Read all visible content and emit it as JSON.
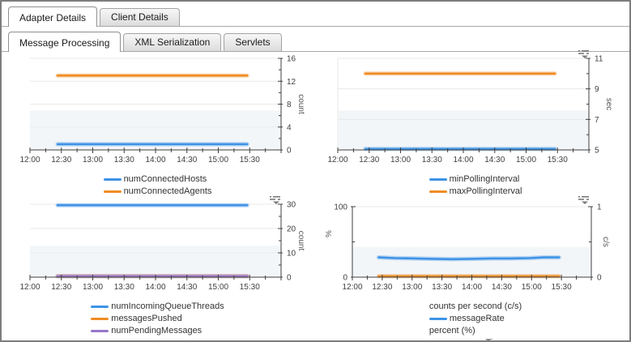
{
  "tabs": {
    "row1": [
      {
        "label": "Adapter Details",
        "active": true
      },
      {
        "label": "Client Details",
        "active": false
      }
    ],
    "row2": [
      {
        "label": "Message Processing",
        "active": true
      },
      {
        "label": "XML Serialization",
        "active": false
      },
      {
        "label": "Servlets",
        "active": false
      }
    ]
  },
  "colors": {
    "blue": "#3e93e6",
    "orange": "#ef8c23",
    "purple": "#9577c9",
    "band": "#f3f6f9",
    "grid": "#e9e9e9",
    "axis": "#3f3f3f",
    "unit_text": "#555555",
    "legend_text": "#333333"
  },
  "x_labels": [
    "12:00",
    "12:30",
    "13:00",
    "13:30",
    "14:00",
    "14:30",
    "15:00",
    "15:30"
  ],
  "chart_data": [
    {
      "type": "line",
      "id": "connections",
      "menu_icon": false,
      "x_tick_labels": [
        "12:00",
        "12:30",
        "13:00",
        "13:30",
        "14:00",
        "14:30",
        "15:00",
        "15:30"
      ],
      "data_x_span": [
        0.11,
        0.865
      ],
      "right_axis": {
        "label": "count",
        "min": 0,
        "max": 16,
        "majors": [
          0,
          4,
          8,
          12,
          16
        ],
        "minor_step": 2
      },
      "series": [
        {
          "name": "numConnectedHosts",
          "color": "blue",
          "axis": "right",
          "value": 1
        },
        {
          "name": "numConnectedAgents",
          "color": "orange",
          "axis": "right",
          "value": 13
        }
      ],
      "legend": [
        {
          "kind": "item",
          "label": "numConnectedHosts",
          "color": "blue"
        },
        {
          "kind": "item",
          "label": "numConnectedAgents",
          "color": "orange"
        }
      ]
    },
    {
      "type": "line",
      "id": "polling-interval",
      "menu_icon": true,
      "x_tick_labels": [
        "12:00",
        "12:30",
        "13:00",
        "13:30",
        "14:00",
        "14:30",
        "15:00",
        "15:30"
      ],
      "data_x_span": [
        0.11,
        0.865
      ],
      "right_axis": {
        "label": "sec",
        "min": 5,
        "max": 11,
        "majors": [
          5,
          7,
          9,
          11
        ],
        "minor_step": 1
      },
      "series": [
        {
          "name": "minPollingInterval",
          "color": "blue",
          "axis": "right",
          "value": 5
        },
        {
          "name": "maxPollingInterval",
          "color": "orange",
          "axis": "right",
          "value": 10
        }
      ],
      "legend": [
        {
          "kind": "item",
          "label": "minPollingInterval",
          "color": "blue"
        },
        {
          "kind": "item",
          "label": "maxPollingInterval",
          "color": "orange"
        }
      ]
    },
    {
      "type": "line",
      "id": "queue",
      "menu_icon": true,
      "x_tick_labels": [
        "12:00",
        "12:30",
        "13:00",
        "13:30",
        "14:00",
        "14:30",
        "15:00",
        "15:30"
      ],
      "data_x_span": [
        0.11,
        0.865
      ],
      "right_axis": {
        "label": "count",
        "min": 0,
        "max": 30,
        "majors": [
          0,
          10,
          20,
          30
        ],
        "minor_step": 5
      },
      "series": [
        {
          "name": "numIncomingQueueThreads",
          "color": "blue",
          "axis": "right",
          "value": 30
        },
        {
          "name": "messagesPushed",
          "color": "orange",
          "axis": "right",
          "value": 0
        },
        {
          "name": "numPendingMessages",
          "color": "purple",
          "axis": "right",
          "value": 0
        }
      ],
      "legend": [
        {
          "kind": "item",
          "label": "numIncomingQueueThreads",
          "color": "blue"
        },
        {
          "kind": "item",
          "label": "messagesPushed",
          "color": "orange"
        },
        {
          "kind": "item",
          "label": "numPendingMessages",
          "color": "purple"
        }
      ]
    },
    {
      "type": "line",
      "id": "message-rate",
      "menu_icon": true,
      "x_tick_labels": [
        "12:00",
        "12:30",
        "13:00",
        "13:30",
        "14:00",
        "14:30",
        "15:00",
        "15:30"
      ],
      "data_x_span": [
        0.11,
        0.865
      ],
      "left_axis": {
        "label": "%",
        "min": 0,
        "max": 100,
        "majors": [
          0,
          100
        ],
        "minor_step": 50
      },
      "right_axis": {
        "label": "c/s",
        "min": 0,
        "max": 1,
        "majors": [
          0,
          1
        ],
        "minor_step": 0.5
      },
      "series": [
        {
          "name": "messageRate",
          "color": "blue",
          "axis": "right",
          "points": [
            [
              0.11,
              0.28
            ],
            [
              0.18,
              0.27
            ],
            [
              0.26,
              0.265
            ],
            [
              0.34,
              0.26
            ],
            [
              0.42,
              0.255
            ],
            [
              0.5,
              0.26
            ],
            [
              0.58,
              0.265
            ],
            [
              0.66,
              0.265
            ],
            [
              0.74,
              0.27
            ],
            [
              0.8,
              0.28
            ],
            [
              0.865,
              0.28
            ]
          ]
        },
        {
          "name": "messageTime",
          "color": "orange",
          "axis": "left",
          "value": 0
        }
      ],
      "legend": [
        {
          "kind": "header",
          "label": "counts per second (c/s)"
        },
        {
          "kind": "item",
          "label": "messageRate",
          "color": "blue"
        },
        {
          "kind": "header",
          "label": "percent (%)"
        },
        {
          "kind": "item",
          "label": "messageTime",
          "color": "orange"
        }
      ]
    }
  ]
}
